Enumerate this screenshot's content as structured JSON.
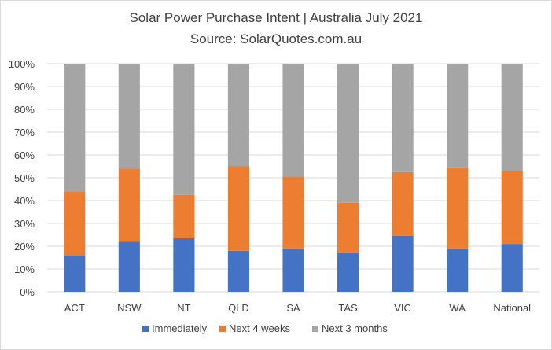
{
  "chart_data": {
    "type": "bar",
    "stacked": true,
    "percent_stacked": true,
    "title": "Solar Power Purchase Intent | Australia July 2021",
    "subtitle": "Source: SolarQuotes.com.au",
    "categories": [
      "ACT",
      "NSW",
      "NT",
      "QLD",
      "SA",
      "TAS",
      "VIC",
      "WA",
      "National"
    ],
    "series": [
      {
        "name": "Immediately",
        "color": "#4472c4",
        "values": [
          16,
          22,
          23.5,
          18,
          19,
          17,
          24.5,
          19,
          21
        ]
      },
      {
        "name": "Next 4 weeks",
        "color": "#ed7d31",
        "values": [
          28,
          32,
          19,
          37,
          31.5,
          22,
          28,
          35.5,
          32
        ]
      },
      {
        "name": "Next 3 months",
        "color": "#a5a5a5",
        "values": [
          56,
          46,
          57.5,
          45,
          49.5,
          61,
          47.5,
          45.5,
          47
        ]
      }
    ],
    "y_ticks": [
      "0%",
      "10%",
      "20%",
      "30%",
      "40%",
      "50%",
      "60%",
      "70%",
      "80%",
      "90%",
      "100%"
    ],
    "ylim": [
      0,
      100
    ],
    "grid": true,
    "legend_position": "bottom",
    "gridline_color": "#d9d9d9"
  }
}
